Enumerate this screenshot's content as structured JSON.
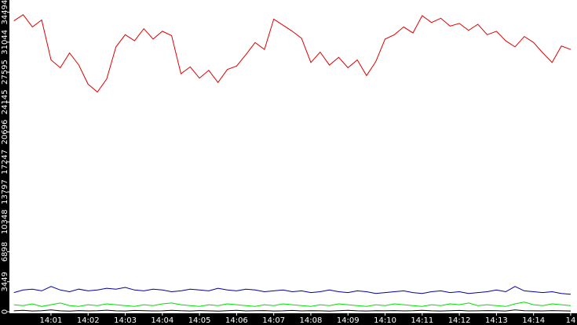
{
  "chart_data": {
    "type": "line",
    "x": [
      0,
      0.25,
      0.5,
      0.75,
      1,
      1.25,
      1.5,
      1.75,
      2,
      2.25,
      2.5,
      2.75,
      3,
      3.25,
      3.5,
      3.75,
      4,
      4.25,
      4.5,
      4.75,
      5,
      5.25,
      5.5,
      5.75,
      6,
      6.25,
      6.5,
      6.75,
      7,
      7.25,
      7.5,
      7.75,
      8,
      8.25,
      8.5,
      8.75,
      9,
      9.25,
      9.5,
      9.75,
      10,
      10.25,
      10.5,
      10.75,
      11,
      11.25,
      11.5,
      11.75,
      12,
      12.25,
      12.5,
      12.75,
      13,
      13.25,
      13.5,
      13.75,
      14,
      14.25,
      14.5,
      14.75,
      15
    ],
    "series": [
      {
        "color": "#e00000",
        "values": [
          33500,
          34200,
          32800,
          33600,
          29000,
          28100,
          29800,
          28400,
          26200,
          25300,
          26800,
          30500,
          31900,
          31200,
          32600,
          31400,
          32300,
          31800,
          27400,
          28200,
          26900,
          27800,
          26400,
          27900,
          28300,
          29600,
          31000,
          30200,
          33700,
          33000,
          32300,
          31500,
          28700,
          29900,
          28400,
          29300,
          28100,
          29000,
          27200,
          28800,
          31400,
          31900,
          32800,
          32100,
          34100,
          33300,
          33800,
          32900,
          33200,
          32400,
          33100,
          31900,
          32300,
          31200,
          30500,
          31700,
          31000,
          29800,
          28700,
          30600,
          30200
        ]
      },
      {
        "color": "#0000a0",
        "values": [
          2200,
          2500,
          2600,
          2400,
          2900,
          2500,
          2300,
          2600,
          2400,
          2500,
          2700,
          2600,
          2800,
          2500,
          2400,
          2600,
          2500,
          2300,
          2400,
          2600,
          2500,
          2400,
          2700,
          2500,
          2400,
          2600,
          2500,
          2300,
          2400,
          2500,
          2300,
          2400,
          2200,
          2300,
          2500,
          2300,
          2200,
          2400,
          2300,
          2100,
          2200,
          2300,
          2400,
          2200,
          2100,
          2300,
          2400,
          2200,
          2300,
          2100,
          2200,
          2300,
          2500,
          2300,
          2900,
          2400,
          2300,
          2200,
          2300,
          2100,
          2000
        ]
      },
      {
        "color": "#00e000",
        "values": [
          800,
          700,
          900,
          600,
          800,
          1000,
          700,
          600,
          800,
          700,
          900,
          800,
          700,
          600,
          800,
          700,
          900,
          1000,
          800,
          700,
          600,
          800,
          700,
          900,
          800,
          700,
          600,
          800,
          700,
          900,
          800,
          700,
          600,
          800,
          700,
          900,
          800,
          700,
          600,
          800,
          700,
          900,
          800,
          700,
          600,
          800,
          700,
          900,
          800,
          1000,
          700,
          800,
          700,
          600,
          900,
          1100,
          800,
          700,
          900,
          800,
          700
        ]
      },
      {
        "color": "#000000",
        "values": [
          100,
          150,
          80,
          120,
          200,
          100,
          60,
          130,
          90,
          110,
          170,
          100,
          80,
          140,
          120,
          90,
          100,
          160,
          110,
          80,
          130,
          100,
          70,
          120,
          150,
          90,
          110,
          130,
          80,
          100,
          140,
          90,
          120,
          100,
          70,
          110,
          150,
          100,
          80,
          120,
          100,
          130,
          90,
          110,
          160,
          100,
          80,
          120,
          140,
          90,
          100,
          130,
          110,
          80,
          200,
          120,
          100,
          90,
          130,
          100,
          80
        ]
      }
    ],
    "xlim": [
      -0.12,
      15.17
    ],
    "ylim": [
      0,
      35900
    ],
    "xticks": [
      {
        "value": 1,
        "label": "14:01"
      },
      {
        "value": 2,
        "label": "14:02"
      },
      {
        "value": 3,
        "label": "14:03"
      },
      {
        "value": 4,
        "label": "14:04"
      },
      {
        "value": 5,
        "label": "14:05"
      },
      {
        "value": 6,
        "label": "14:06"
      },
      {
        "value": 7,
        "label": "14:07"
      },
      {
        "value": 8,
        "label": "14:08"
      },
      {
        "value": 9,
        "label": "14:09"
      },
      {
        "value": 10,
        "label": "14:10"
      },
      {
        "value": 11,
        "label": "14:11"
      },
      {
        "value": 12,
        "label": "14:12"
      },
      {
        "value": 13,
        "label": "14:13"
      },
      {
        "value": 14,
        "label": "14:14"
      },
      {
        "value": 15,
        "label": "14"
      }
    ],
    "yticks": [
      0,
      3449,
      6898,
      10348,
      13797,
      17247,
      20696,
      24145,
      27595,
      31044,
      34494
    ]
  }
}
